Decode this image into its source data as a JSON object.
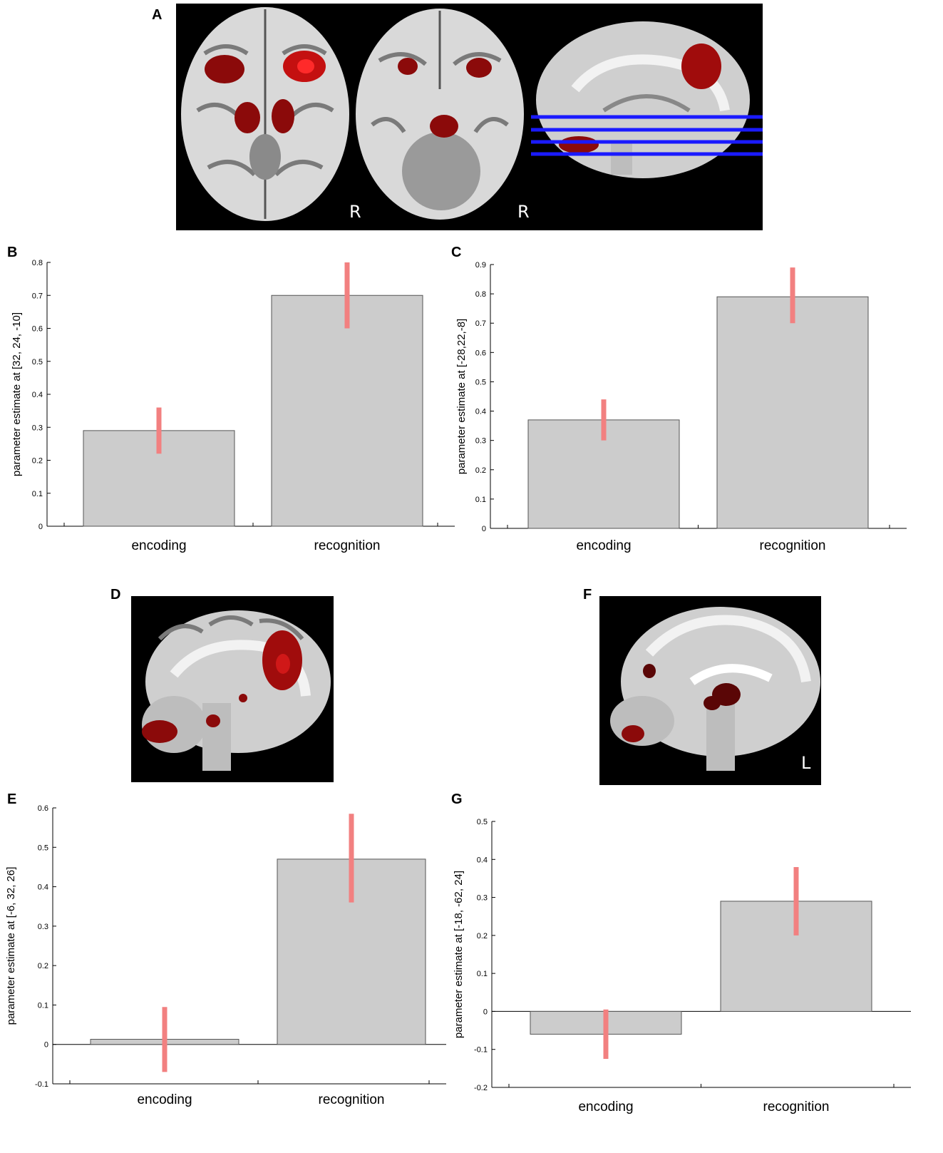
{
  "panels": {
    "A": {
      "letter": "A",
      "orientation_labels": [
        "R",
        "R"
      ]
    },
    "D": {
      "letter": "D"
    },
    "F": {
      "letter": "F",
      "orientation_label": "L"
    }
  },
  "colors": {
    "bar_fill": "#cccccc",
    "bar_stroke": "#555555",
    "error_bar": "#f28080",
    "activation": "#8b0a0a",
    "slice_lines": "#1a1aff",
    "image_background": "#000000"
  },
  "chart_data": [
    {
      "panel": "B",
      "type": "bar",
      "categories": [
        "encoding",
        "recognition"
      ],
      "values": [
        0.29,
        0.7
      ],
      "error_low": [
        0.22,
        0.6
      ],
      "error_high": [
        0.36,
        0.8
      ],
      "ylabel": "parameter estimate at [32, 24, -10]",
      "ylim": [
        0,
        0.8
      ],
      "yticks": [
        "0",
        "0.1",
        "0.2",
        "0.3",
        "0.4",
        "0.5",
        "0.6",
        "0.7",
        "0.8"
      ]
    },
    {
      "panel": "C",
      "type": "bar",
      "categories": [
        "encoding",
        "recognition"
      ],
      "values": [
        0.37,
        0.79
      ],
      "error_low": [
        0.3,
        0.7
      ],
      "error_high": [
        0.44,
        0.89
      ],
      "ylabel": "parameter estimate at [-28,22,-8]",
      "ylim": [
        0,
        0.9
      ],
      "yticks": [
        "0",
        "0.1",
        "0.2",
        "0.3",
        "0.4",
        "0.5",
        "0.6",
        "0.7",
        "0.8",
        "0.9"
      ]
    },
    {
      "panel": "E",
      "type": "bar",
      "categories": [
        "encoding",
        "recognition"
      ],
      "values": [
        0.013,
        0.47
      ],
      "error_low": [
        -0.07,
        0.36
      ],
      "error_high": [
        0.095,
        0.585
      ],
      "ylabel": "parameter estimate at [-6, 32, 26]",
      "ylim": [
        -0.1,
        0.6
      ],
      "yticks": [
        "-0.1",
        "0",
        "0.1",
        "0.2",
        "0.3",
        "0.4",
        "0.5",
        "0.6"
      ]
    },
    {
      "panel": "G",
      "type": "bar",
      "categories": [
        "encoding",
        "recognition"
      ],
      "values": [
        -0.06,
        0.29
      ],
      "error_low": [
        -0.125,
        0.2
      ],
      "error_high": [
        0.005,
        0.38
      ],
      "ylabel": "parameter estimate at [-18, -62, 24]",
      "ylim": [
        -0.2,
        0.5
      ],
      "yticks": [
        "-0.2",
        "-0.1",
        "0",
        "0.1",
        "0.2",
        "0.3",
        "0.4",
        "0.5"
      ]
    }
  ]
}
